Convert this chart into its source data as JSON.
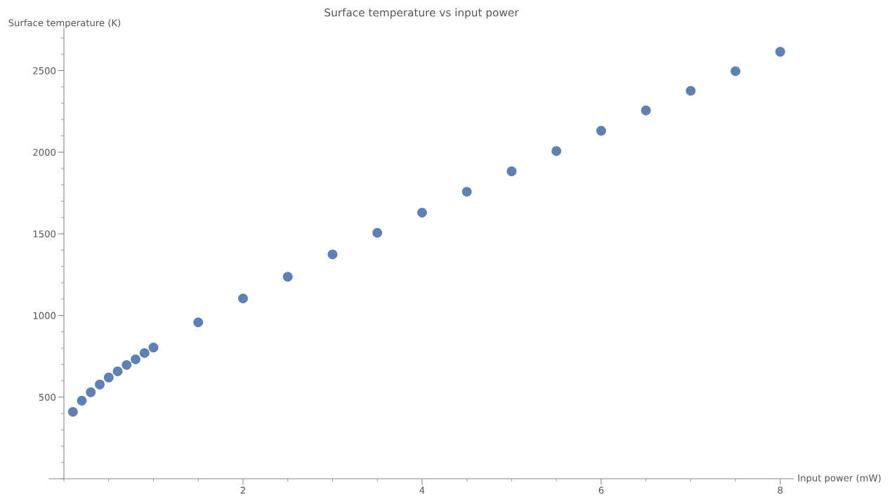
{
  "chart_data": {
    "type": "scatter",
    "title": "Surface temperature vs input power",
    "xlabel": "Input power (mW)",
    "ylabel": "Surface temperature (K)",
    "x": [
      0.1,
      0.2,
      0.3,
      0.4,
      0.5,
      0.6,
      0.7,
      0.8,
      0.9,
      1.0,
      1.5,
      2.0,
      2.5,
      3.0,
      3.5,
      4.0,
      4.5,
      5.0,
      5.5,
      6.0,
      6.5,
      7.0,
      7.5,
      8.0
    ],
    "values": [
      410,
      478,
      530,
      577,
      620,
      658,
      697,
      731,
      770,
      804,
      958,
      1104,
      1237,
      1374,
      1506,
      1630,
      1758,
      1883,
      2007,
      2131,
      2256,
      2376,
      2496,
      2615
    ],
    "color": "#5e81b5",
    "marker": "circle",
    "grid": false,
    "xlim": [
      -0.165,
      8.15
    ],
    "ylim": [
      0,
      2760
    ],
    "xticks": [
      2,
      4,
      6,
      8
    ],
    "yticks": [
      500,
      1000,
      1500,
      2000,
      2500
    ]
  }
}
